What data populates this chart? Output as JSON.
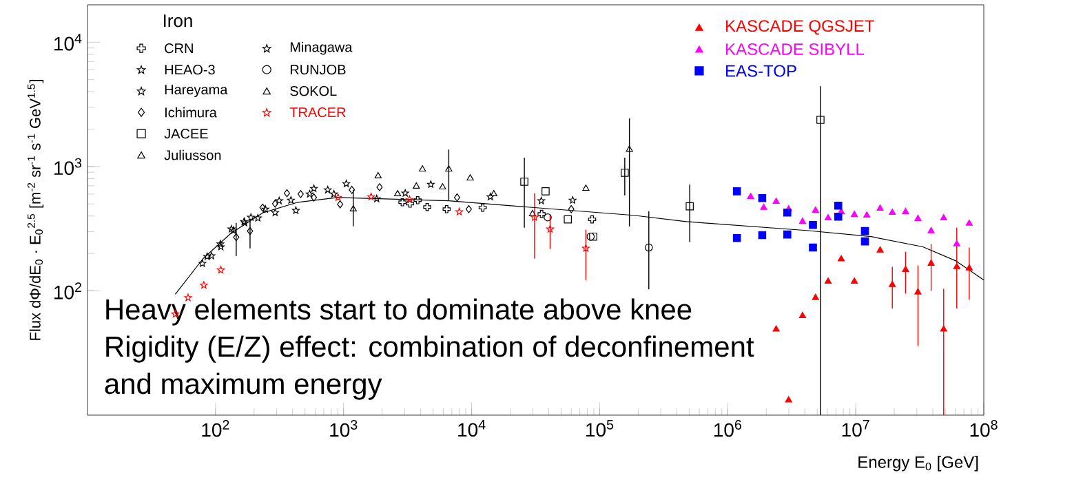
{
  "chart_data": {
    "type": "scatter",
    "log": "xy",
    "xlabel": "Energy E$_{0}$ [GeV]",
    "ylabel": "Flux dΦ/dE$_{0}$ · E$_{0}$$^{2.5}$ [m$^{-2}$ sr$^{-1}$ s$^{-1}$ GeV$^{1.5}$]",
    "legend_title": "Iron",
    "legend": "top left",
    "annotations": [
      "Heavy elements start to dominate above knee",
      "Rigidity (E/Z) effect: combination of deconfinement",
      "and maximum energy"
    ],
    "xlim": [
      10,
      100000000
    ],
    "ylim": [
      10,
      20000
    ],
    "xticks": [
      {
        "value": 100,
        "label": "10$^{2}$"
      },
      {
        "value": 1000,
        "label": "10$^{3}$"
      },
      {
        "value": 10000,
        "label": "10$^{4}$"
      },
      {
        "value": 100000,
        "label": "10$^{5}$"
      },
      {
        "value": 1000000,
        "label": "10$^{6}$"
      },
      {
        "value": 10000000,
        "label": "10$^{7}$"
      },
      {
        "value": 100000000,
        "label": "10$^{8}$"
      }
    ],
    "yticks": [
      {
        "value": 100,
        "label": "10$^{2}$"
      },
      {
        "value": 1000,
        "label": "10$^{3}$"
      },
      {
        "value": 10000,
        "label": "10$^{4}$"
      }
    ],
    "series": [
      {
        "name": "CRN",
        "color": "#000000",
        "marker": "cross",
        "x": [
          2880,
          3300,
          3790,
          4500,
          6380,
          12200,
          35200,
          87300
        ],
        "values": [
          516,
          503,
          536,
          472,
          454,
          467,
          416,
          376
        ]
      },
      {
        "name": "HEAO-3",
        "color": "#000000",
        "marker": "star",
        "x": [
          86,
          109,
          133,
          167,
          189,
          314,
          543,
          840,
          1815
        ],
        "values": [
          189,
          238,
          314,
          361,
          390,
          530,
          601,
          601,
          550
        ]
      },
      {
        "name": "Hareyama",
        "color": "#000000",
        "marker": "star",
        "x": [
          245,
          388,
          586,
          752,
          1050,
          3030,
          4800,
          14000,
          35000,
          61500
        ],
        "values": [
          454,
          536,
          665,
          649,
          728,
          610,
          718,
          571,
          530,
          536
        ]
      },
      {
        "name": "Ichimura",
        "color": "#000000",
        "marker": "diamond",
        "x": [
          145,
          186,
          233,
          292,
          361,
          462,
          586,
          940,
          1160,
          1910,
          7700,
          9500,
          60000
        ],
        "values": [
          270,
          303,
          467,
          503,
          610,
          601,
          564,
          497,
          649,
          682,
          564,
          454,
          454
        ],
        "errors": [
          [
            191,
            352
          ],
          [
            220,
            376
          ],
          null,
          null,
          null,
          null,
          null,
          null,
          null,
          null,
          null,
          null,
          null
        ]
      },
      {
        "name": "JACEE",
        "color": "#000000",
        "marker": "square",
        "x": [
          25800,
          37800,
          56400,
          89000,
          157000,
          505000,
          5300000
        ],
        "values": [
          755,
          632,
          376,
          273,
          891,
          479,
          2375
        ],
        "errors": [
          [
            322,
            1180
          ],
          null,
          null,
          null,
          [
            586,
            1180
          ],
          [
            247,
            718
          ],
          [
            10,
            4430
          ]
        ]
      },
      {
        "name": "Juliusson",
        "color": "#000000",
        "marker": "triangle",
        "x": [
          1190,
          1860,
          2640,
          4130,
          6630
        ],
        "values": [
          454,
          838,
          601,
          950,
          950
        ],
        "errors": [
          [
            330,
            649
          ],
          null,
          null,
          null,
          [
            530,
            1370
          ]
        ]
      },
      {
        "name": "Minagawa",
        "color": "#000000",
        "marker": "star",
        "x": [
          79,
          93,
          110,
          138,
          169,
          214,
          292,
          424
        ],
        "values": [
          166,
          191,
          226,
          306,
          352,
          385,
          426,
          443
        ]
      },
      {
        "name": "RUNJOB",
        "color": "#000000",
        "marker": "circle",
        "x": [
          39300,
          85000,
          242000
        ],
        "values": [
          390,
          273,
          223
        ],
        "errors": [
          null,
          null,
          [
            103,
            438
          ]
        ]
      },
      {
        "name": "SOKOL",
        "color": "#000000",
        "marker": "triangle",
        "x": [
          3700,
          5930,
          9750,
          14900,
          29900,
          78000,
          170700
        ],
        "values": [
          692,
          682,
          805,
          601,
          416,
          665,
          1370
        ],
        "errors": [
          null,
          null,
          null,
          null,
          null,
          null,
          [
            330,
            2440
          ]
        ]
      },
      {
        "name": "TRACER",
        "color": "#ff0000",
        "marker": "star",
        "x": [
          48.5,
          61,
          81,
          110,
          905,
          1640,
          3270,
          8000,
          31000,
          41000,
          78000
        ],
        "values": [
          65,
          88,
          111,
          147,
          564,
          571,
          543,
          432,
          390,
          314,
          220
        ],
        "errors": [
          null,
          null,
          null,
          null,
          null,
          null,
          null,
          null,
          [
            182,
            610
          ],
          [
            217,
            410
          ],
          [
            122,
            310
          ]
        ]
      },
      {
        "name": "KASCADE QGSJET",
        "color": "#ff0000",
        "marker": "triangle",
        "x": [
          2390000,
          2990000,
          3840000,
          4850000,
          6080000,
          7700000,
          9750000,
          15500000,
          19300000,
          24500000,
          30600000,
          38800000,
          48600000,
          61500000,
          77000000
        ],
        "values": [
          49,
          13.2,
          63,
          88,
          119,
          180,
          119,
          212,
          112,
          148,
          97.5,
          166,
          49,
          156,
          152
        ],
        "errors": [
          null,
          null,
          null,
          null,
          null,
          null,
          null,
          null,
          [
            72,
            156
          ],
          [
            95,
            206
          ],
          [
            36,
            160
          ],
          [
            100,
            238
          ],
          [
            10,
            104
          ],
          [
            72,
            322
          ],
          [
            85,
            223
          ]
        ]
      },
      {
        "name": "KASCADE SIBYLL",
        "color": "#ff00ff",
        "marker": "triangle",
        "x": [
          1510000,
          1910000,
          2390000,
          2990000,
          3840000,
          4850000,
          6080000,
          7700000,
          9750000,
          12200000,
          15500000,
          19300000,
          24500000,
          30600000,
          38800000,
          48600000,
          61500000,
          77000000
        ],
        "values": [
          571,
          467,
          522,
          454,
          361,
          443,
          385,
          432,
          410,
          405,
          460,
          426,
          432,
          380,
          303,
          385,
          238,
          348
        ]
      },
      {
        "name": "EAS-TOP",
        "color": "#0000ff",
        "marker": "square",
        "x": [
          1180000,
          1180000,
          1860000,
          1860000,
          2920000,
          2920000,
          4630000,
          4630000,
          7300000,
          7300000,
          11800000,
          11800000
        ],
        "values": [
          632,
          266,
          557,
          281,
          426,
          284,
          339,
          223,
          484,
          395,
          303,
          250
        ]
      },
      {
        "type": "line",
        "color": "#000000",
        "marker": "none",
        "x": [
          48.5,
          80,
          132,
          236,
          440,
          893,
          6630,
          27400,
          184000,
          474000,
          4130000,
          13200000,
          33400000,
          60000000,
          100000000
        ],
        "values": [
          94,
          182,
          291,
          426,
          516,
          564,
          530,
          472,
          405,
          361,
          306,
          273,
          226,
          175,
          122
        ]
      }
    ]
  }
}
